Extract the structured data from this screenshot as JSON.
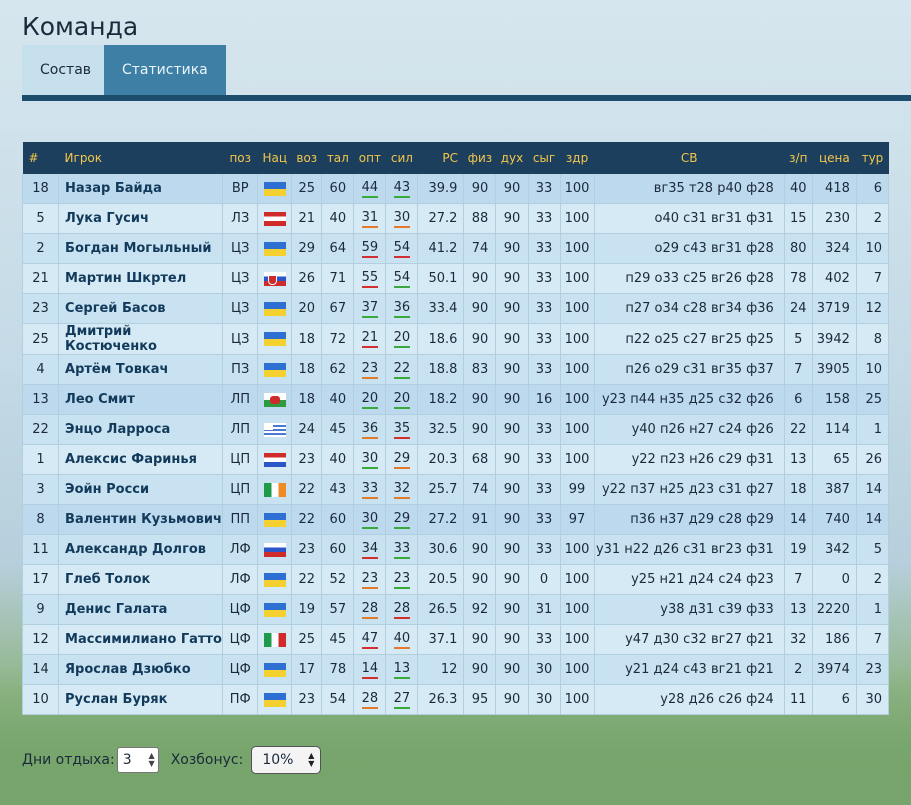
{
  "page": {
    "title": "Команда"
  },
  "tabs": [
    {
      "label": "Состав",
      "active": true
    },
    {
      "label": "Статистика",
      "active": false
    }
  ],
  "table": {
    "headers": [
      "#",
      "Игрок",
      "поз",
      "Нац",
      "воз",
      "тал",
      "опт",
      "сил",
      "РС",
      "физ",
      "дух",
      "сыг",
      "здр",
      "СВ",
      "з/п",
      "цена",
      "тур"
    ],
    "rows": [
      {
        "num": "18",
        "name": "Назар Байда",
        "pos": "ВР",
        "flag": "ua",
        "age": "25",
        "tal": "60",
        "opt": "44",
        "opt_c": "g",
        "sil": "43",
        "sil_c": "g",
        "rs": "39.9",
        "fiz": "90",
        "duh": "90",
        "syg": "33",
        "zdr": "100",
        "sv": "вг35 т28 р40 ф28",
        "zp": "40",
        "price": "418",
        "tur": "6",
        "hl": true
      },
      {
        "num": "5",
        "name": "Лука Гусич",
        "pos": "ЛЗ",
        "flag": "at",
        "age": "21",
        "tal": "40",
        "opt": "31",
        "opt_c": "o",
        "sil": "30",
        "sil_c": "o",
        "rs": "27.2",
        "fiz": "88",
        "duh": "90",
        "syg": "33",
        "zdr": "100",
        "sv": "о40 с31 вг31 ф31",
        "zp": "15",
        "price": "230",
        "tur": "2"
      },
      {
        "num": "2",
        "name": "Богдан Могыльный",
        "pos": "ЦЗ",
        "flag": "ua",
        "age": "29",
        "tal": "64",
        "opt": "59",
        "opt_c": "r",
        "sil": "54",
        "sil_c": "r",
        "rs": "41.2",
        "fiz": "74",
        "duh": "90",
        "syg": "33",
        "zdr": "100",
        "sv": "о29 с43 вг31 ф28",
        "zp": "80",
        "price": "324",
        "tur": "10"
      },
      {
        "num": "21",
        "name": "Мартин Шкртел",
        "pos": "ЦЗ",
        "flag": "sk",
        "age": "26",
        "tal": "71",
        "opt": "55",
        "opt_c": "r",
        "sil": "54",
        "sil_c": "g",
        "rs": "50.1",
        "fiz": "90",
        "duh": "90",
        "syg": "33",
        "zdr": "100",
        "sv": "п29 о33 с25 вг26 ф28",
        "zp": "78",
        "price": "402",
        "tur": "7"
      },
      {
        "num": "23",
        "name": "Сергей Басов",
        "pos": "ЦЗ",
        "flag": "ua",
        "age": "20",
        "tal": "67",
        "opt": "37",
        "opt_c": "g",
        "sil": "36",
        "sil_c": "g",
        "rs": "33.4",
        "fiz": "90",
        "duh": "90",
        "syg": "33",
        "zdr": "100",
        "sv": "п27 о34 с28 вг34 ф36",
        "zp": "24",
        "price": "3719",
        "tur": "12"
      },
      {
        "num": "25",
        "name": "Дмитрий Костюченко",
        "pos": "ЦЗ",
        "flag": "ua",
        "age": "18",
        "tal": "72",
        "opt": "21",
        "opt_c": "r",
        "sil": "20",
        "sil_c": "g",
        "rs": "18.6",
        "fiz": "90",
        "duh": "90",
        "syg": "33",
        "zdr": "100",
        "sv": "п22 о25 с27 вг25 ф25",
        "zp": "5",
        "price": "3942",
        "tur": "8"
      },
      {
        "num": "4",
        "name": "Артём Товкач",
        "pos": "ПЗ",
        "flag": "ua",
        "age": "18",
        "tal": "62",
        "opt": "23",
        "opt_c": "o",
        "sil": "22",
        "sil_c": "g",
        "rs": "18.8",
        "fiz": "83",
        "duh": "90",
        "syg": "33",
        "zdr": "100",
        "sv": "п26 о29 с31 вг35 ф37",
        "zp": "7",
        "price": "3905",
        "tur": "10"
      },
      {
        "num": "13",
        "name": "Лео Смит",
        "pos": "ЛП",
        "flag": "wa",
        "age": "18",
        "tal": "40",
        "opt": "20",
        "opt_c": "g",
        "sil": "20",
        "sil_c": "g",
        "rs": "18.2",
        "fiz": "90",
        "duh": "90",
        "syg": "16",
        "zdr": "100",
        "sv": "у23 п44 н35 д25 с32 ф26",
        "zp": "6",
        "price": "158",
        "tur": "25",
        "hl": true
      },
      {
        "num": "22",
        "name": "Энцо Ларроса",
        "pos": "ЛП",
        "flag": "uy",
        "age": "24",
        "tal": "45",
        "opt": "36",
        "opt_c": "o",
        "sil": "35",
        "sil_c": "r",
        "rs": "32.5",
        "fiz": "90",
        "duh": "90",
        "syg": "33",
        "zdr": "100",
        "sv": "у40 п26 н27 с24 ф26",
        "zp": "22",
        "price": "114",
        "tur": "1"
      },
      {
        "num": "1",
        "name": "Алексис Фаринья",
        "pos": "ЦП",
        "flag": "py",
        "age": "23",
        "tal": "40",
        "opt": "30",
        "opt_c": "g",
        "sil": "29",
        "sil_c": "o",
        "rs": "20.3",
        "fiz": "68",
        "duh": "90",
        "syg": "33",
        "zdr": "100",
        "sv": "у22 п23 н26 с29 ф31",
        "zp": "13",
        "price": "65",
        "tur": "26"
      },
      {
        "num": "3",
        "name": "Эойн Росси",
        "pos": "ЦП",
        "flag": "ie",
        "age": "22",
        "tal": "43",
        "opt": "33",
        "opt_c": "o",
        "sil": "32",
        "sil_c": "o",
        "rs": "25.7",
        "fiz": "74",
        "duh": "90",
        "syg": "33",
        "zdr": "99",
        "sv": "у22 п37 н25 д23 с31 ф27",
        "zp": "18",
        "price": "387",
        "tur": "14"
      },
      {
        "num": "8",
        "name": "Валентин Кузьмович",
        "pos": "ПП",
        "flag": "ua",
        "age": "22",
        "tal": "60",
        "opt": "30",
        "opt_c": "g",
        "sil": "29",
        "sil_c": "g",
        "rs": "27.2",
        "fiz": "91",
        "duh": "90",
        "syg": "33",
        "zdr": "97",
        "sv": "п36 н37 д29 с28 ф29",
        "zp": "14",
        "price": "740",
        "tur": "14",
        "hl": true
      },
      {
        "num": "11",
        "name": "Александр Долгов",
        "pos": "ЛФ",
        "flag": "ru",
        "age": "23",
        "tal": "60",
        "opt": "34",
        "opt_c": "r",
        "sil": "33",
        "sil_c": "g",
        "rs": "30.6",
        "fiz": "90",
        "duh": "90",
        "syg": "33",
        "zdr": "100",
        "sv": "у31 н22 д26 с31 вг23 ф31",
        "zp": "19",
        "price": "342",
        "tur": "5"
      },
      {
        "num": "17",
        "name": "Глеб Толок",
        "pos": "ЛФ",
        "flag": "ua",
        "age": "22",
        "tal": "52",
        "opt": "23",
        "opt_c": "o",
        "sil": "23",
        "sil_c": "g",
        "rs": "20.5",
        "fiz": "90",
        "duh": "90",
        "syg": "0",
        "zdr": "100",
        "sv": "у25 н21 д24 с24 ф23",
        "zp": "7",
        "price": "0",
        "tur": "2"
      },
      {
        "num": "9",
        "name": "Денис Галата",
        "pos": "ЦФ",
        "flag": "ua",
        "age": "19",
        "tal": "57",
        "opt": "28",
        "opt_c": "o",
        "sil": "28",
        "sil_c": "r",
        "rs": "26.5",
        "fiz": "92",
        "duh": "90",
        "syg": "31",
        "zdr": "100",
        "sv": "у38 д31 с39 ф33",
        "zp": "13",
        "price": "2220",
        "tur": "1"
      },
      {
        "num": "12",
        "name": "Массимилиано Гатто",
        "pos": "ЦФ",
        "flag": "it",
        "age": "25",
        "tal": "45",
        "opt": "47",
        "opt_c": "r",
        "sil": "40",
        "sil_c": "o",
        "rs": "37.1",
        "fiz": "90",
        "duh": "90",
        "syg": "33",
        "zdr": "100",
        "sv": "у47 д30 с32 вг27 ф21",
        "zp": "32",
        "price": "186",
        "tur": "7"
      },
      {
        "num": "14",
        "name": "Ярослав Дзюбко",
        "pos": "ЦФ",
        "flag": "ua",
        "age": "17",
        "tal": "78",
        "opt": "14",
        "opt_c": "r",
        "sil": "13",
        "sil_c": "g",
        "rs": "12",
        "fiz": "90",
        "duh": "90",
        "syg": "30",
        "zdr": "100",
        "sv": "у21 д24 с43 вг21 ф21",
        "zp": "2",
        "price": "3974",
        "tur": "23"
      },
      {
        "num": "10",
        "name": "Руслан Буряк",
        "pos": "ПФ",
        "flag": "ua",
        "age": "23",
        "tal": "54",
        "opt": "28",
        "opt_c": "o",
        "sil": "27",
        "sil_c": "g",
        "rs": "26.3",
        "fiz": "95",
        "duh": "90",
        "syg": "30",
        "zdr": "100",
        "sv": "у28 д26 с26 ф24",
        "zp": "11",
        "price": "6",
        "tur": "30"
      }
    ]
  },
  "footer": {
    "rest_label": "Дни отдыха:",
    "rest_value": "3",
    "bonus_label": "Хозбонус:",
    "bonus_value": "10%"
  },
  "colors": {
    "header_bg": "#1c3f5e",
    "header_text": "#f3c64a",
    "tab_active": "#c7e0ee",
    "tab_inactive": "#3e7fa6",
    "accent_line": "#1d4d6c"
  }
}
